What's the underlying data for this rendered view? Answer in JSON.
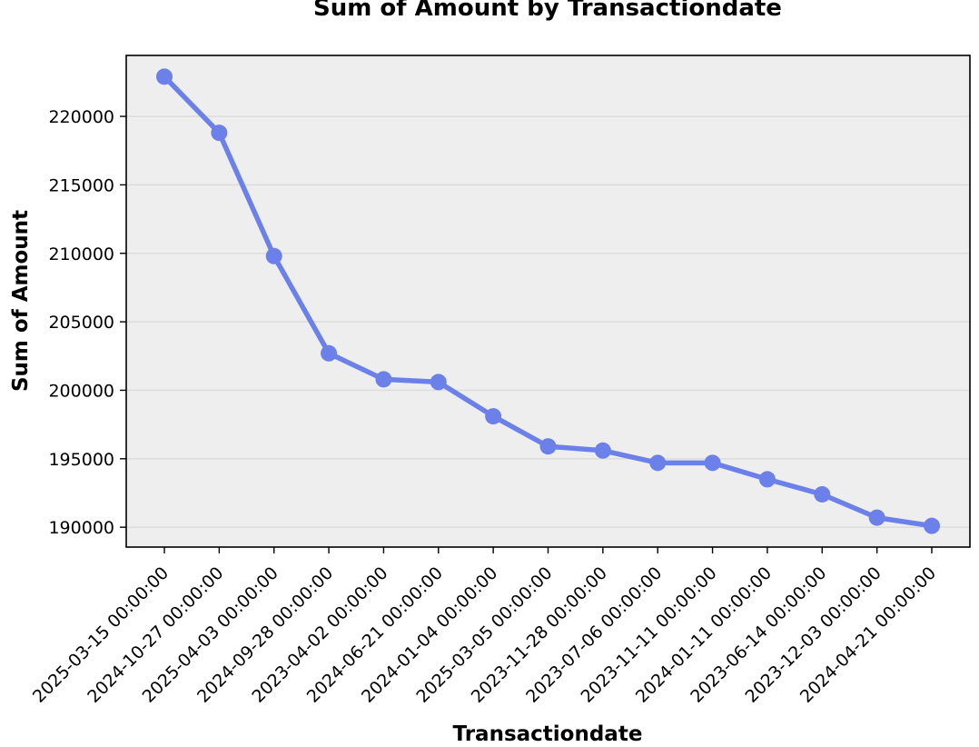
{
  "chart_data": {
    "type": "line",
    "title": "Sum of Amount by Transactiondate",
    "xlabel": "Transactiondate",
    "ylabel": "Sum of Amount",
    "categories": [
      "2025-03-15 00:00:00",
      "2024-10-27 00:00:00",
      "2025-04-03 00:00:00",
      "2024-09-28 00:00:00",
      "2023-04-02 00:00:00",
      "2024-06-21 00:00:00",
      "2024-01-04 00:00:00",
      "2025-03-05 00:00:00",
      "2023-11-28 00:00:00",
      "2023-07-06 00:00:00",
      "2023-11-11 00:00:00",
      "2024-01-11 00:00:00",
      "2023-06-14 00:00:00",
      "2023-12-03 00:00:00",
      "2024-04-21 00:00:00"
    ],
    "values": [
      222900,
      218800,
      209800,
      202700,
      200800,
      200600,
      198100,
      195900,
      195600,
      194700,
      194700,
      193500,
      192400,
      190700,
      190100
    ],
    "yticks": [
      190000,
      195000,
      200000,
      205000,
      210000,
      215000,
      220000
    ],
    "ylim": [
      188550,
      224450
    ],
    "grid": "horizontal",
    "line_color": "#6b80e8",
    "background_color": "#eeeeee"
  }
}
